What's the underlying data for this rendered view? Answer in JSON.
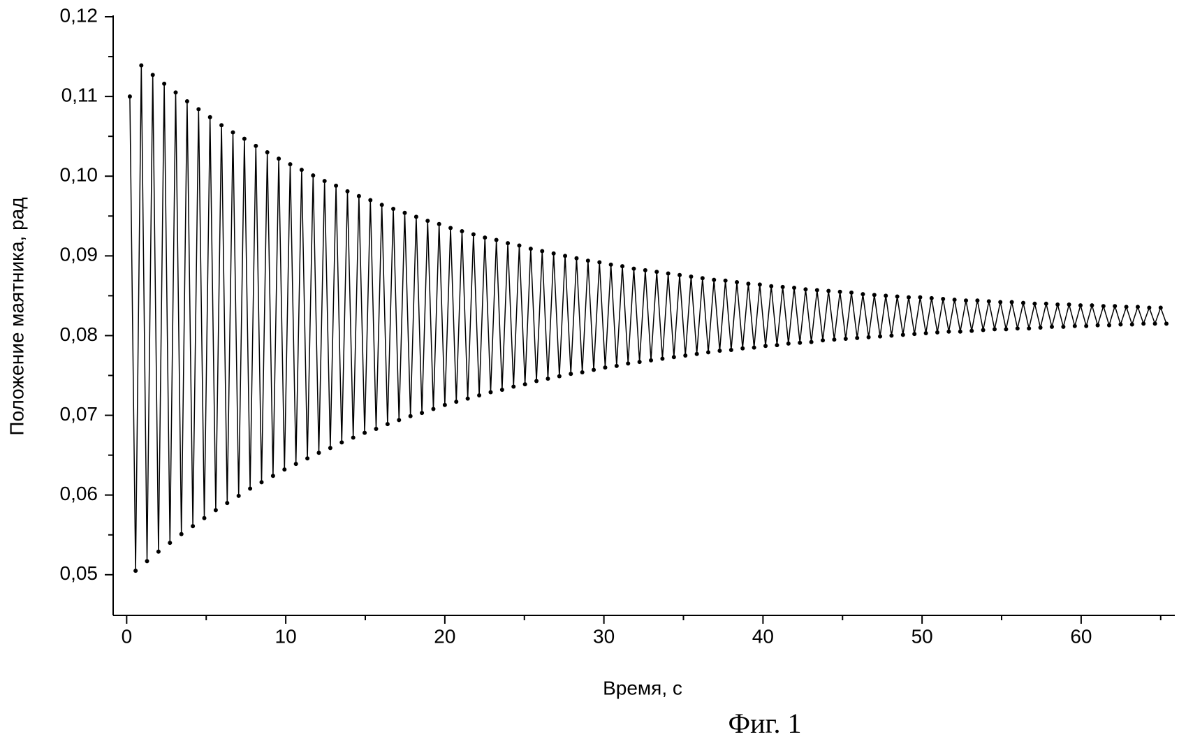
{
  "chart_data": {
    "type": "line",
    "xlabel": "Время, с",
    "ylabel": "Положение маятника, рад",
    "caption": "Фиг. 1",
    "color": "#000000",
    "xlim": [
      -0.85,
      65.8
    ],
    "ylim": [
      0.0449,
      0.12
    ],
    "xticks": [
      0,
      10,
      20,
      30,
      40,
      50,
      60
    ],
    "xminorticks": [
      5,
      15,
      25,
      35,
      45,
      55,
      65
    ],
    "yticks": [
      {
        "value": 0.05,
        "label": "0,05"
      },
      {
        "value": 0.06,
        "label": "0,06"
      },
      {
        "value": 0.07,
        "label": "0,07"
      },
      {
        "value": 0.08,
        "label": "0,08"
      },
      {
        "value": 0.09,
        "label": "0,09"
      },
      {
        "value": 0.1,
        "label": "0,10"
      },
      {
        "value": 0.11,
        "label": "0,11"
      },
      {
        "value": 0.12,
        "label": "0,12"
      }
    ],
    "yminorticks": [
      0.055,
      0.065,
      0.075,
      0.085,
      0.095,
      0.105,
      0.115
    ],
    "x": [
      0.2,
      0.56,
      0.92,
      1.28,
      1.64,
      2.0,
      2.36,
      2.72,
      3.08,
      3.44,
      3.8,
      4.16,
      4.52,
      4.88,
      5.24,
      5.6,
      5.96,
      6.32,
      6.68,
      7.04,
      7.4,
      7.76,
      8.12,
      8.48,
      8.84,
      9.2,
      9.56,
      9.92,
      10.28,
      10.64,
      11.0,
      11.36,
      11.72,
      12.08,
      12.44,
      12.8,
      13.16,
      13.52,
      13.88,
      14.24,
      14.6,
      14.96,
      15.32,
      15.68,
      16.04,
      16.4,
      16.76,
      17.12,
      17.48,
      17.84,
      18.2,
      18.56,
      18.92,
      19.28,
      19.64,
      20.0,
      20.36,
      20.72,
      21.08,
      21.44,
      21.8,
      22.16,
      22.52,
      22.88,
      23.24,
      23.6,
      23.96,
      24.32,
      24.68,
      25.04,
      25.4,
      25.76,
      26.12,
      26.48,
      26.84,
      27.2,
      27.56,
      27.92,
      28.28,
      28.64,
      29.0,
      29.36,
      29.72,
      30.08,
      30.44,
      30.8,
      31.16,
      31.52,
      31.88,
      32.24,
      32.6,
      32.96,
      33.32,
      33.68,
      34.04,
      34.4,
      34.76,
      35.12,
      35.48,
      35.84,
      36.2,
      36.56,
      36.92,
      37.28,
      37.64,
      38.0,
      38.36,
      38.72,
      39.08,
      39.44,
      39.8,
      40.16,
      40.52,
      40.88,
      41.24,
      41.6,
      41.96,
      42.32,
      42.68,
      43.04,
      43.4,
      43.76,
      44.12,
      44.48,
      44.84,
      45.2,
      45.56,
      45.92,
      46.28,
      46.64,
      47.0,
      47.36,
      47.72,
      48.08,
      48.44,
      48.8,
      49.16,
      49.52,
      49.88,
      50.24,
      50.6,
      50.96,
      51.32,
      51.68,
      52.04,
      52.4,
      52.76,
      53.12,
      53.48,
      53.84,
      54.2,
      54.56,
      54.92,
      55.28,
      55.64,
      56.0,
      56.36,
      56.72,
      57.08,
      57.44,
      57.8,
      58.16,
      58.52,
      58.88,
      59.24,
      59.6,
      59.96,
      60.32,
      60.68,
      61.04,
      61.4,
      61.76,
      62.12,
      62.48,
      62.84,
      63.2,
      63.56,
      63.92,
      64.28,
      64.64,
      65.0,
      65.36
    ],
    "values": [
      0.11,
      0.0505,
      0.1139,
      0.0517,
      0.1127,
      0.0529,
      0.1116,
      0.054,
      0.1105,
      0.0551,
      0.1094,
      0.0561,
      0.1084,
      0.0571,
      0.1074,
      0.0581,
      0.1064,
      0.059,
      0.1055,
      0.0599,
      0.1047,
      0.0608,
      0.1038,
      0.0616,
      0.103,
      0.0624,
      0.1022,
      0.0632,
      0.1015,
      0.0639,
      0.1008,
      0.0646,
      0.1001,
      0.0653,
      0.0994,
      0.0659,
      0.0988,
      0.0666,
      0.0981,
      0.0672,
      0.0975,
      0.0678,
      0.097,
      0.0683,
      0.0964,
      0.0689,
      0.0959,
      0.0694,
      0.0954,
      0.0699,
      0.0949,
      0.0703,
      0.0944,
      0.0708,
      0.094,
      0.0713,
      0.0935,
      0.0717,
      0.0931,
      0.0721,
      0.0927,
      0.0725,
      0.0923,
      0.0729,
      0.092,
      0.0732,
      0.0916,
      0.0736,
      0.0913,
      0.0739,
      0.0909,
      0.0743,
      0.0906,
      0.0746,
      0.0903,
      0.0749,
      0.09,
      0.0752,
      0.0897,
      0.0754,
      0.0894,
      0.0757,
      0.0892,
      0.076,
      0.0889,
      0.0762,
      0.0887,
      0.0765,
      0.0884,
      0.0767,
      0.0882,
      0.0769,
      0.088,
      0.0771,
      0.0878,
      0.0773,
      0.0876,
      0.0775,
      0.0874,
      0.0777,
      0.0872,
      0.0779,
      0.087,
      0.0781,
      0.0869,
      0.0782,
      0.0867,
      0.0784,
      0.0865,
      0.0785,
      0.0864,
      0.0787,
      0.0862,
      0.0788,
      0.0861,
      0.079,
      0.086,
      0.0791,
      0.0858,
      0.0792,
      0.0857,
      0.0794,
      0.0856,
      0.0795,
      0.0855,
      0.0796,
      0.0854,
      0.0797,
      0.0852,
      0.0798,
      0.0851,
      0.0799,
      0.085,
      0.08,
      0.0849,
      0.0801,
      0.0848,
      0.0802,
      0.0848,
      0.0803,
      0.0847,
      0.0804,
      0.0846,
      0.0805,
      0.0845,
      0.0805,
      0.0844,
      0.0806,
      0.0844,
      0.0807,
      0.0843,
      0.0808,
      0.0842,
      0.0808,
      0.0842,
      0.0809,
      0.0841,
      0.0809,
      0.084,
      0.081,
      0.084,
      0.0811,
      0.0839,
      0.0811,
      0.0839,
      0.0812,
      0.0838,
      0.0812,
      0.0838,
      0.0813,
      0.0837,
      0.0813,
      0.0837,
      0.0814,
      0.0836,
      0.0814,
      0.0836,
      0.0815,
      0.0835,
      0.0815,
      0.0835,
      0.0815
    ]
  }
}
